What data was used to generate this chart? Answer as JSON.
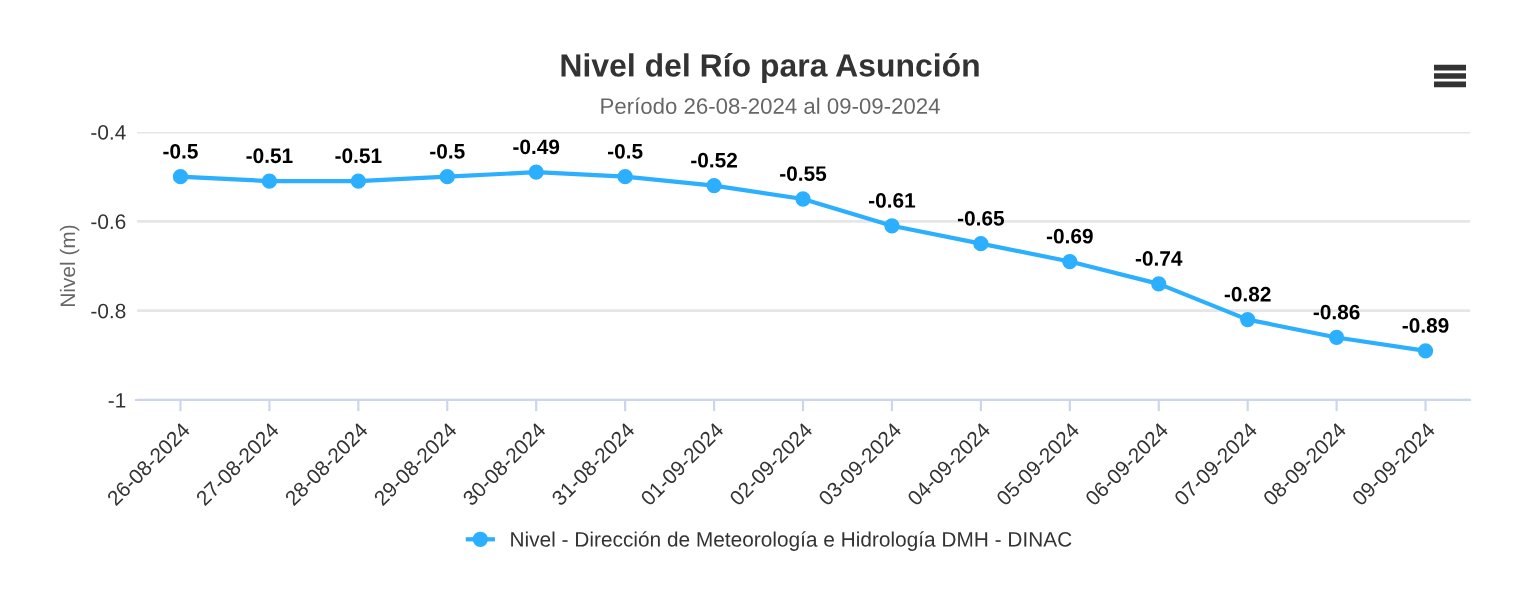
{
  "chart_data": {
    "type": "line",
    "title": "Nivel del Río para Asunción",
    "subtitle": "Período 26-08-2024 al 09-09-2024",
    "ylabel": "Nivel (m)",
    "categories": [
      "26-08-2024",
      "27-08-2024",
      "28-08-2024",
      "29-08-2024",
      "30-08-2024",
      "31-08-2024",
      "01-09-2024",
      "02-09-2024",
      "03-09-2024",
      "04-09-2024",
      "05-09-2024",
      "06-09-2024",
      "07-09-2024",
      "08-09-2024",
      "09-09-2024"
    ],
    "series": [
      {
        "name": "Nivel - Dirección de Meteorología e Hidrología DMH - DINAC",
        "color": "#2caffe",
        "values": [
          -0.5,
          -0.51,
          -0.51,
          -0.5,
          -0.49,
          -0.5,
          -0.52,
          -0.55,
          -0.61,
          -0.65,
          -0.69,
          -0.74,
          -0.82,
          -0.86,
          -0.89
        ]
      }
    ],
    "ylim": [
      -1,
      -0.4
    ],
    "yticks": [
      -1,
      -0.8,
      -0.6,
      -0.4
    ],
    "grid": "y",
    "legend": "bottom",
    "marker": "circle",
    "line_style": "solid",
    "data_labels": true
  }
}
